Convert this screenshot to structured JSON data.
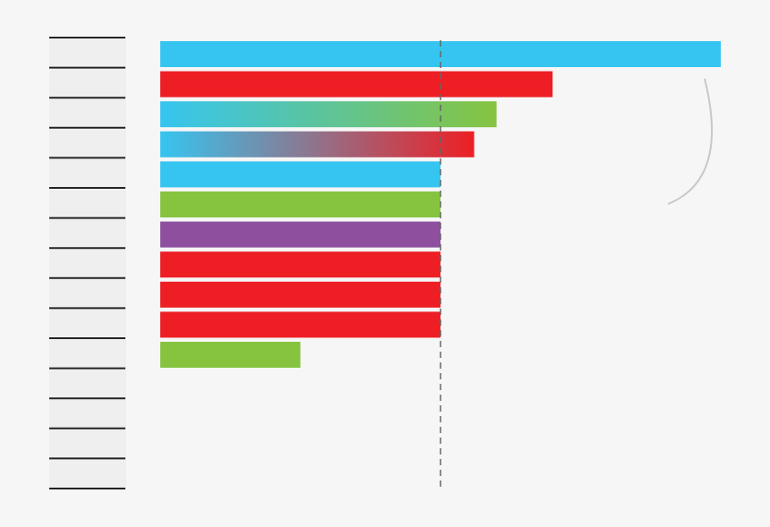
{
  "chart_data": {
    "type": "hbar",
    "categories": [
      null,
      null,
      null,
      null,
      null,
      null,
      null,
      null,
      null,
      null,
      null,
      null,
      null,
      null,
      null
    ],
    "values": [
      200,
      140,
      120,
      112,
      100,
      100,
      100,
      100,
      100,
      100,
      50,
      null,
      null,
      null,
      null
    ],
    "colors": [
      "#36c5f0",
      "#ed1f24",
      [
        "#36c5f0",
        "#86c440"
      ],
      [
        "#36c5f0",
        "#ed1f24"
      ],
      "#36c5f0",
      "#86c440",
      "#8e509e",
      "#ed1f24",
      "#ed1f24",
      "#ed1f24",
      "#86c440",
      null,
      null,
      null,
      null
    ],
    "xlim": [
      0,
      200
    ],
    "reference_line": 100
  }
}
